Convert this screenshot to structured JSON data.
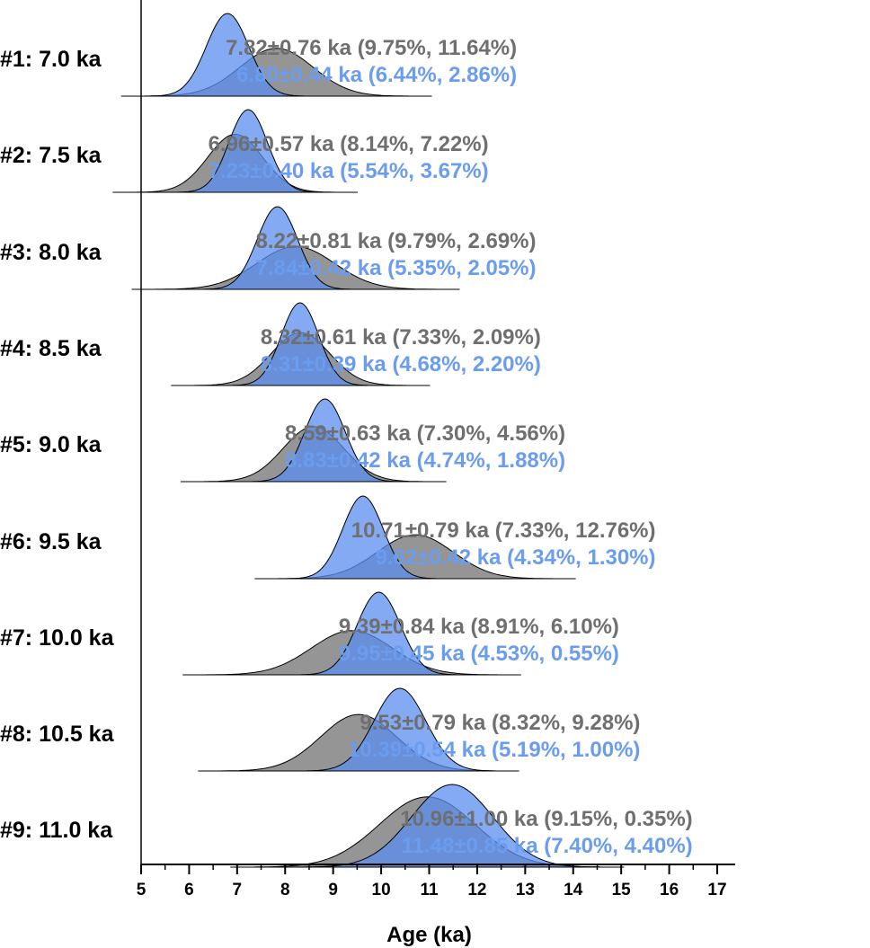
{
  "colors": {
    "gray_fill": "#7a7a7a",
    "blue_fill": "#5b8def",
    "gray_text": "#6f6f6f",
    "blue_text": "#6a9cf0",
    "axis": "#000000"
  },
  "chart_data": {
    "type": "area",
    "title": "",
    "xlabel": "Age (ka)",
    "ylabel": "",
    "xlim": [
      5,
      17
    ],
    "x_ticks": [
      5,
      6,
      7,
      8,
      9,
      10,
      11,
      12,
      13,
      14,
      15,
      16,
      17
    ],
    "grid": false,
    "legend": "none",
    "rows": [
      {
        "label": "#1: 7.0 ka",
        "gray": {
          "mean": 7.82,
          "sd": 0.76
        },
        "blue": {
          "mean": 6.8,
          "sd": 0.44
        },
        "gray_text": "7.82±0.76 ka (9.75%, 11.64%)",
        "blue_text": "6.80±0.44 ka (6.44%,   2.86%)"
      },
      {
        "label": "#2: 7.5 ka",
        "gray": {
          "mean": 6.96,
          "sd": 0.57
        },
        "blue": {
          "mean": 7.23,
          "sd": 0.4
        },
        "gray_text": "6.96±0.57 ka (8.14%, 7.22%)",
        "blue_text": "7.23±0.40 ka (5.54%, 3.67%)"
      },
      {
        "label": "#3: 8.0 ka",
        "gray": {
          "mean": 8.22,
          "sd": 0.81
        },
        "blue": {
          "mean": 7.84,
          "sd": 0.42
        },
        "gray_text": "8.22±0.81 ka (9.79%, 2.69%)",
        "blue_text": "7.84±0.42 ka (5.35%, 2.05%)"
      },
      {
        "label": "#4: 8.5 ka",
        "gray": {
          "mean": 8.32,
          "sd": 0.61
        },
        "blue": {
          "mean": 8.31,
          "sd": 0.39
        },
        "gray_text": "8.32±0.61 ka (7.33%, 2.09%)",
        "blue_text": "8.31±0.39 ka (4.68%, 2.20%)"
      },
      {
        "label": "#5: 9.0 ka",
        "gray": {
          "mean": 8.59,
          "sd": 0.63
        },
        "blue": {
          "mean": 8.83,
          "sd": 0.42
        },
        "gray_text": "8.59±0.63 ka (7.30%, 4.56%)",
        "blue_text": "8.83±0.42 ka (4.74%, 1.88%)"
      },
      {
        "label": "#6: 9.5 ka",
        "gray": {
          "mean": 10.71,
          "sd": 0.79
        },
        "blue": {
          "mean": 9.62,
          "sd": 0.42
        },
        "gray_text": "10.71±0.79 ka (7.33%, 12.76%)",
        "blue_text": "9.62±0.42 ka (4.34%,   1.30%)"
      },
      {
        "label": "#7: 10.0 ka",
        "gray": {
          "mean": 9.39,
          "sd": 0.84
        },
        "blue": {
          "mean": 9.95,
          "sd": 0.45
        },
        "gray_text": "9.39±0.84 ka (8.91%, 6.10%)",
        "blue_text": "9.95±0.45 ka (4.53%, 0.55%)"
      },
      {
        "label": "#8: 10.5 ka",
        "gray": {
          "mean": 9.53,
          "sd": 0.79
        },
        "blue": {
          "mean": 10.39,
          "sd": 0.54
        },
        "gray_text": "9.53±0.79 ka (8.32%, 9.28%)",
        "blue_text": "10.39±0.54 ka (5.19%, 1.00%)"
      },
      {
        "label": "#9: 11.0 ka",
        "gray": {
          "mean": 10.96,
          "sd": 1.0
        },
        "blue": {
          "mean": 11.48,
          "sd": 0.85
        },
        "gray_text": "10.96±1.00 ka (9.15%, 0.35%)",
        "blue_text": "11.48±0.85 ka (7.40%, 4.40%)"
      }
    ]
  }
}
